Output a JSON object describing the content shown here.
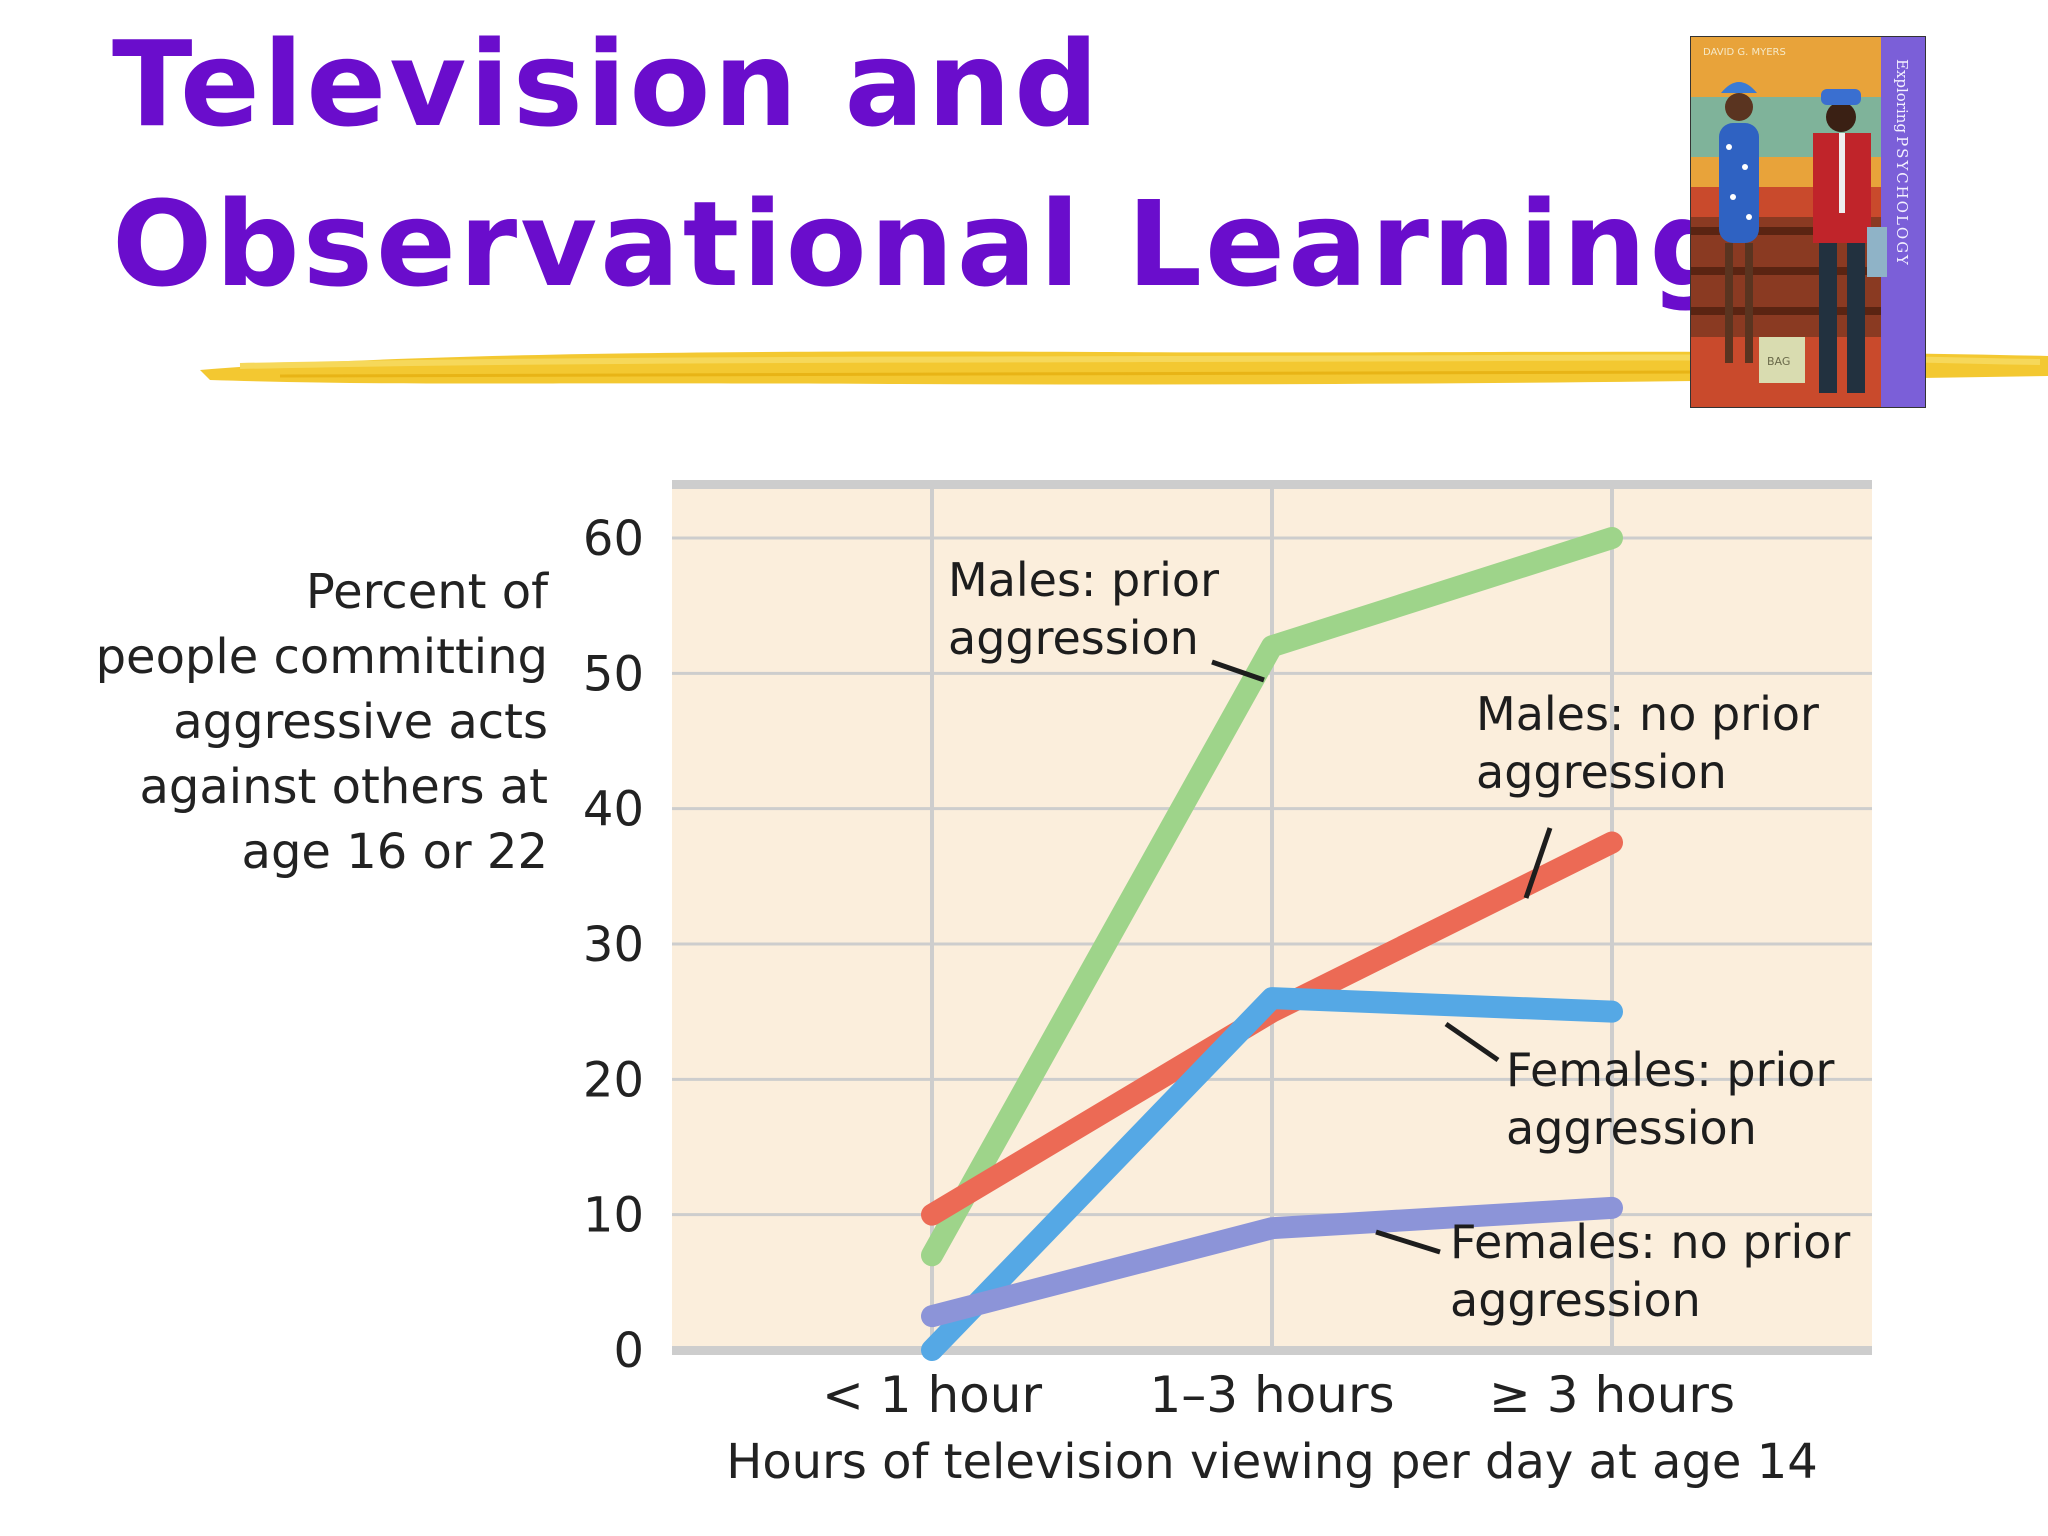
{
  "slide": {
    "title_line1": "Television and",
    "title_line2": "Observational Learning",
    "title_color": "#6a0dcc",
    "accent_color": "#f2c21b"
  },
  "book_cover": {
    "author": "DAVID G. MYERS",
    "spine_text_prefix": "Exploring",
    "spine_text_main": "PSYCHOLOGY",
    "bag_text": "BAG"
  },
  "chart_data": {
    "type": "line",
    "categories": [
      "< 1 hour",
      "1–3 hours",
      "≥ 3 hours"
    ],
    "ylim": [
      0,
      60
    ],
    "yticks": [
      0,
      10,
      20,
      30,
      40,
      50,
      60
    ],
    "ylabel_lines": [
      "Percent of",
      "people committing",
      "aggressive acts",
      "against others at",
      "age 16 or 22"
    ],
    "xlabel": "Hours of television viewing per day at age 14",
    "grid": true,
    "series": [
      {
        "id": "males-prior",
        "label_lines": [
          "Males: prior",
          "aggression"
        ],
        "values": [
          7,
          52,
          60
        ],
        "color": "#9ed48a"
      },
      {
        "id": "males-no-prior",
        "label_lines": [
          "Males: no prior",
          "aggression"
        ],
        "values": [
          10,
          25,
          37.5
        ],
        "color": "#ec6a55"
      },
      {
        "id": "females-prior",
        "label_lines": [
          "Females: prior",
          "aggression"
        ],
        "values": [
          0,
          26,
          25
        ],
        "color": "#55a8e5"
      },
      {
        "id": "females-no-prior",
        "label_lines": [
          "Females: no prior",
          "aggression"
        ],
        "values": [
          2.5,
          9,
          10.5
        ],
        "color": "#8c94d8"
      }
    ],
    "plot_background": "#fbeedc",
    "grid_color": "#cdcdcd"
  }
}
